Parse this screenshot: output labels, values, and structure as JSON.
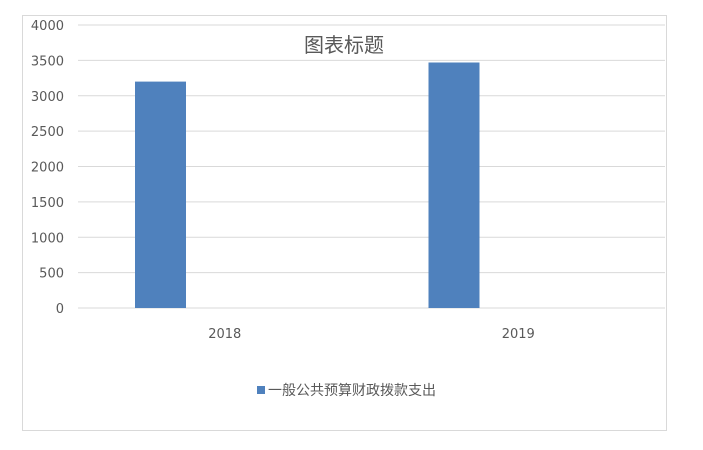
{
  "chart_data": {
    "type": "bar",
    "title": "图表标题",
    "categories": [
      "2018",
      "2019"
    ],
    "series": [
      {
        "name": "一般公共预算财政拨款支出",
        "values": [
          3200,
          3470
        ],
        "color": "#4f81bd"
      }
    ],
    "ylim": [
      0,
      4000
    ],
    "yticks": [
      0,
      500,
      1000,
      1500,
      2000,
      2500,
      3000,
      3500,
      4000
    ],
    "grid": true,
    "legend": "bottom"
  }
}
